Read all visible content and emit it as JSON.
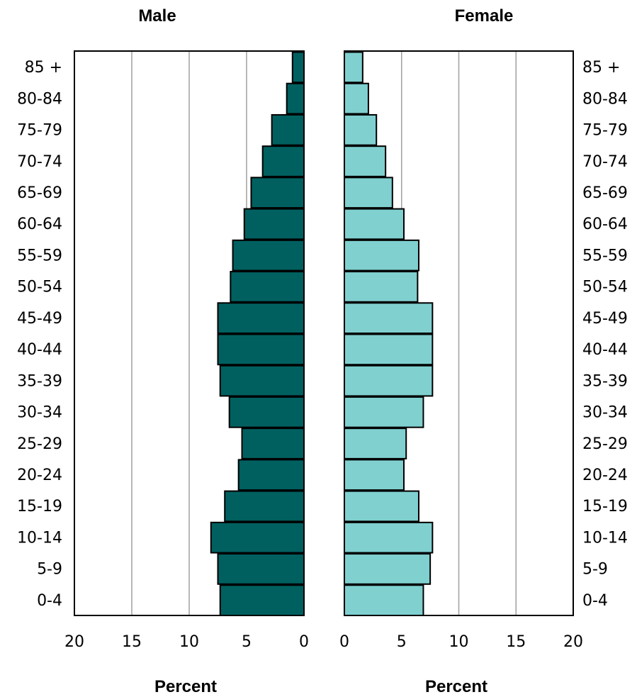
{
  "chart_data": {
    "type": "bar",
    "orientation": "horizontal",
    "categories": [
      "85 +",
      "80-84",
      "75-79",
      "70-74",
      "65-69",
      "60-64",
      "55-59",
      "50-54",
      "45-49",
      "40-44",
      "35-39",
      "30-34",
      "25-29",
      "20-24",
      "15-19",
      "10-14",
      "5-9",
      "0-4"
    ],
    "series": [
      {
        "name": "Male",
        "color": "#006060",
        "values": [
          1.0,
          1.5,
          2.8,
          3.6,
          4.6,
          5.2,
          6.2,
          6.4,
          7.5,
          7.5,
          7.3,
          6.5,
          5.4,
          5.7,
          6.9,
          8.1,
          7.5,
          7.3
        ]
      },
      {
        "name": "Female",
        "color": "#80D0D0",
        "values": [
          1.6,
          2.1,
          2.8,
          3.6,
          4.2,
          5.2,
          6.5,
          6.4,
          7.7,
          7.7,
          7.7,
          6.9,
          5.4,
          5.2,
          6.5,
          7.7,
          7.5,
          6.9
        ]
      }
    ],
    "xlabel": "Percent",
    "xlim": [
      0,
      20
    ],
    "x_ticks": [
      "20",
      "15",
      "10",
      "5",
      "0",
      "0",
      "5",
      "10",
      "15",
      "20"
    ],
    "grid": true
  }
}
